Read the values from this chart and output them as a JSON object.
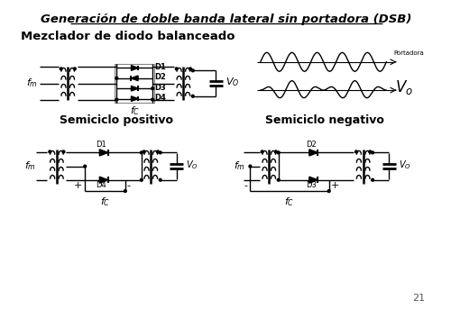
{
  "title": "Generación de doble banda lateral sin portadora (DSB)",
  "subtitle1": "Mezclador de diodo balanceado",
  "subtitle2": "Semiciclo positivo",
  "subtitle3": "Semiciclo negativo",
  "bg_color": "#ffffff",
  "line_color": "#000000",
  "text_color": "#000000",
  "page_number": "21"
}
